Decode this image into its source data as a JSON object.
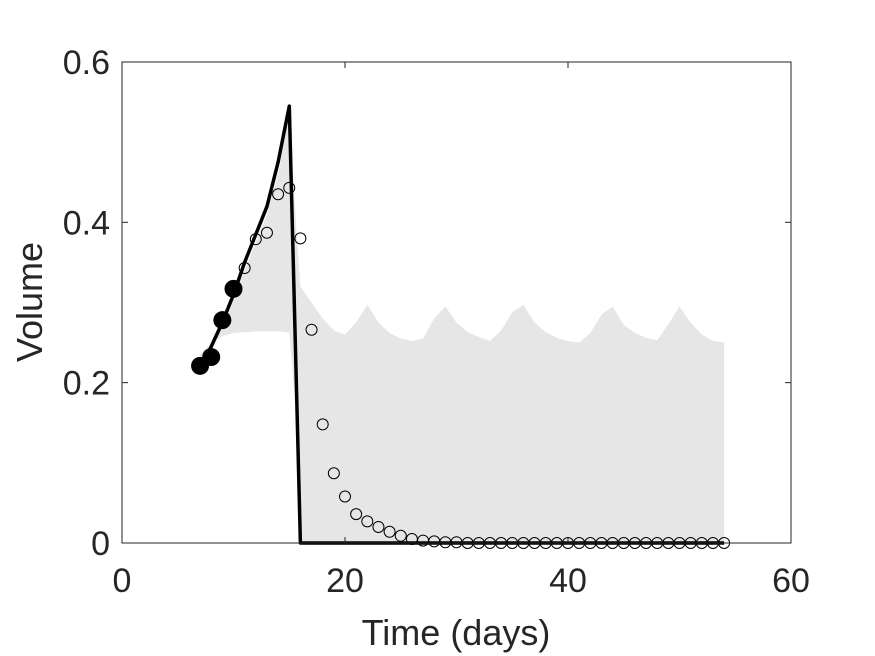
{
  "chart_data": {
    "type": "scatter",
    "xlabel": "Time (days)",
    "ylabel": "Volume",
    "xlim": [
      0,
      60
    ],
    "ylim": [
      0,
      0.6
    ],
    "xticks": [
      0,
      20,
      40,
      60
    ],
    "xtick_labels": [
      "0",
      "20",
      "40",
      "60"
    ],
    "yticks": [
      0,
      0.2,
      0.4,
      0.6
    ],
    "ytick_labels": [
      "0",
      "0.2",
      "0.4",
      "0.6"
    ],
    "grid": false,
    "colors": {
      "band": "#e6e6e6",
      "line": "#000000",
      "axes": "#262626"
    },
    "band": {
      "upper": [
        [
          7,
          0.23
        ],
        [
          8,
          0.25
        ],
        [
          9,
          0.275
        ],
        [
          10,
          0.305
        ],
        [
          11,
          0.34
        ],
        [
          12,
          0.375
        ],
        [
          13,
          0.41
        ],
        [
          14,
          0.46
        ],
        [
          15,
          0.535
        ],
        [
          15.6,
          0.4
        ],
        [
          16,
          0.32
        ],
        [
          16.5,
          0.31
        ],
        [
          17,
          0.3
        ],
        [
          18,
          0.28
        ],
        [
          19,
          0.265
        ],
        [
          20,
          0.26
        ],
        [
          21,
          0.275
        ],
        [
          22,
          0.297
        ],
        [
          23,
          0.275
        ],
        [
          24,
          0.262
        ],
        [
          25,
          0.255
        ],
        [
          26,
          0.252
        ],
        [
          27,
          0.255
        ],
        [
          28,
          0.28
        ],
        [
          29,
          0.295
        ],
        [
          30,
          0.275
        ],
        [
          31,
          0.263
        ],
        [
          32,
          0.257
        ],
        [
          33,
          0.252
        ],
        [
          34,
          0.265
        ],
        [
          35,
          0.288
        ],
        [
          36,
          0.297
        ],
        [
          37,
          0.275
        ],
        [
          38,
          0.263
        ],
        [
          39,
          0.256
        ],
        [
          40,
          0.252
        ],
        [
          41,
          0.25
        ],
        [
          42,
          0.262
        ],
        [
          43,
          0.285
        ],
        [
          44,
          0.295
        ],
        [
          45,
          0.272
        ],
        [
          46,
          0.262
        ],
        [
          47,
          0.256
        ],
        [
          48,
          0.253
        ],
        [
          49,
          0.273
        ],
        [
          50,
          0.295
        ],
        [
          51,
          0.275
        ],
        [
          52,
          0.26
        ],
        [
          53,
          0.252
        ],
        [
          54,
          0.25
        ]
      ],
      "lower": [
        [
          7,
          0.235
        ],
        [
          8,
          0.25
        ],
        [
          9,
          0.258
        ],
        [
          10,
          0.262
        ],
        [
          11,
          0.263
        ],
        [
          12,
          0.264
        ],
        [
          13,
          0.264
        ],
        [
          14,
          0.264
        ],
        [
          15,
          0.263
        ],
        [
          15.5,
          0.18
        ],
        [
          16,
          0.0
        ],
        [
          54,
          0.0
        ]
      ]
    },
    "series": [
      {
        "style": "line",
        "points": [
          [
            7,
            0.22
          ],
          [
            8,
            0.245
          ],
          [
            9,
            0.275
          ],
          [
            10,
            0.31
          ],
          [
            11,
            0.35
          ],
          [
            12,
            0.385
          ],
          [
            13,
            0.42
          ],
          [
            14,
            0.475
          ],
          [
            15,
            0.545
          ],
          [
            16,
            0.0
          ],
          [
            54,
            0.0
          ]
        ]
      },
      {
        "style": "filled-marker",
        "points": [
          [
            7,
            0.221
          ],
          [
            8,
            0.232
          ],
          [
            9,
            0.278
          ],
          [
            10,
            0.317
          ]
        ]
      },
      {
        "style": "open-marker",
        "points": [
          [
            11,
            0.343
          ],
          [
            12,
            0.379
          ],
          [
            13,
            0.387
          ],
          [
            14,
            0.435
          ],
          [
            15,
            0.443
          ],
          [
            16,
            0.38
          ],
          [
            17,
            0.266
          ],
          [
            18,
            0.148
          ],
          [
            19,
            0.087
          ],
          [
            20,
            0.058
          ],
          [
            21,
            0.036
          ],
          [
            22,
            0.027
          ],
          [
            23,
            0.02
          ],
          [
            24,
            0.014
          ],
          [
            25,
            0.009
          ],
          [
            26,
            0.005
          ],
          [
            27,
            0.003
          ],
          [
            28,
            0.002
          ],
          [
            29,
            0.001
          ],
          [
            30,
            0.001
          ],
          [
            31,
            0.0
          ],
          [
            32,
            0.0
          ],
          [
            33,
            0.0
          ],
          [
            34,
            0.0
          ],
          [
            35,
            0.0
          ],
          [
            36,
            0.0
          ],
          [
            37,
            0.0
          ],
          [
            38,
            0.0
          ],
          [
            39,
            0.0
          ],
          [
            40,
            0.0
          ],
          [
            41,
            0.0
          ],
          [
            42,
            0.0
          ],
          [
            43,
            0.0
          ],
          [
            44,
            0.0
          ],
          [
            45,
            0.0
          ],
          [
            46,
            0.0
          ],
          [
            47,
            0.0
          ],
          [
            48,
            0.0
          ],
          [
            49,
            0.0
          ],
          [
            50,
            0.0
          ],
          [
            51,
            0.0
          ],
          [
            52,
            0.0
          ],
          [
            53,
            0.0
          ],
          [
            54,
            0.0
          ]
        ]
      }
    ]
  }
}
